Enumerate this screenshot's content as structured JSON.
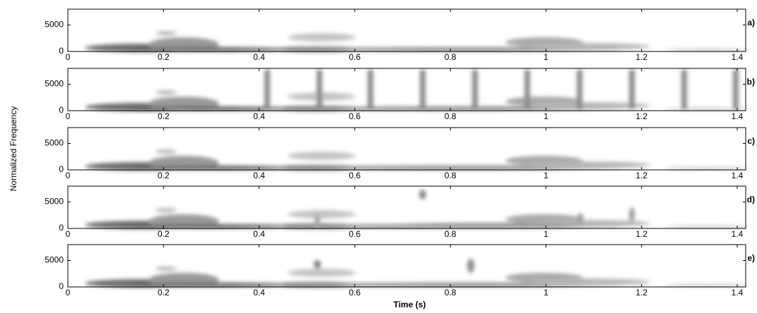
{
  "chart_data": [
    {
      "type": "spectrogram",
      "label": "a)",
      "xlim": [
        0,
        1.42
      ],
      "ylim": [
        0,
        8000
      ],
      "xticks": [
        0,
        0.2,
        0.4,
        0.6,
        0.8,
        1,
        1.2,
        1.4
      ],
      "yticks": [
        0,
        5000
      ]
    },
    {
      "type": "spectrogram",
      "label": "b)",
      "xlim": [
        0,
        1.42
      ],
      "ylim": [
        0,
        8000
      ],
      "xticks": [
        0,
        0.2,
        0.4,
        0.6,
        0.8,
        1,
        1.2,
        1.4
      ],
      "yticks": [
        0,
        5000
      ]
    },
    {
      "type": "spectrogram",
      "label": "c)",
      "xlim": [
        0,
        1.42
      ],
      "ylim": [
        0,
        8000
      ],
      "xticks": [
        0,
        0.2,
        0.4,
        0.6,
        0.8,
        1,
        1.2,
        1.4
      ],
      "yticks": [
        0,
        5000
      ],
      "ylabel": "Normalized Frequency"
    },
    {
      "type": "spectrogram",
      "label": "d)",
      "xlim": [
        0,
        1.42
      ],
      "ylim": [
        0,
        8000
      ],
      "xticks": [
        0,
        0.2,
        0.4,
        0.6,
        0.8,
        1,
        1.2,
        1.4
      ],
      "yticks": [
        0,
        5000
      ]
    },
    {
      "type": "spectrogram",
      "label": "e)",
      "xlim": [
        0,
        1.42
      ],
      "ylim": [
        0,
        8000
      ],
      "xticks": [
        0,
        0.2,
        0.4,
        0.6,
        0.8,
        1,
        1.2,
        1.4
      ],
      "yticks": [
        0,
        5000
      ],
      "xlabel": "Time (s)"
    }
  ]
}
